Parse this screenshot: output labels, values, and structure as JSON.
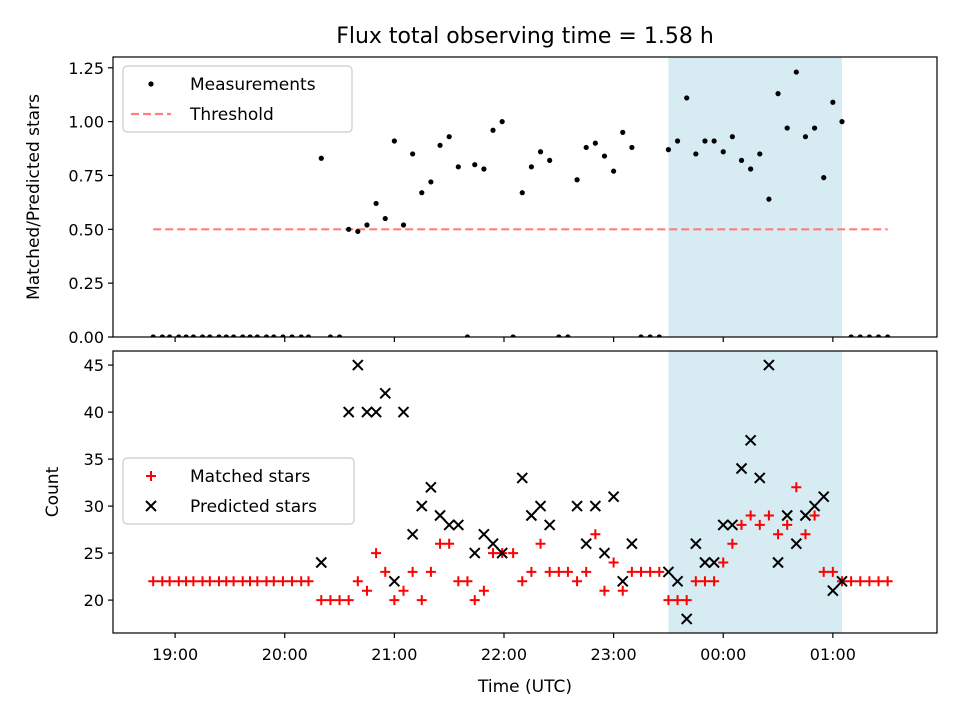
{
  "figure": {
    "title": "Flux total observing time = 1.58 h",
    "xlabel": "Time (UTC)"
  },
  "chart_data": [
    {
      "type": "scatter",
      "ylabel": "Matched/Predicted stars",
      "xlim": [
        "18:26",
        "01:57"
      ],
      "ylim": [
        0,
        1.3
      ],
      "yticks": [
        0.0,
        0.25,
        0.5,
        0.75,
        1.0,
        1.25
      ],
      "ytick_labels": [
        "0.00",
        "0.25",
        "0.50",
        "0.75",
        "1.00",
        "1.25"
      ],
      "legend": [
        "Measurements",
        "Threshold"
      ],
      "legend_loc": "upper left",
      "shaded_span": [
        "23:30",
        "01:05"
      ],
      "shaded_color": "#add8e6",
      "threshold": {
        "name": "Threshold",
        "y": 0.5,
        "x": [
          "18:48",
          "01:30"
        ],
        "color": "#ff7f7f",
        "style": "dashed"
      },
      "series": [
        {
          "name": "Measurements",
          "marker": "dot",
          "color": "#000000",
          "points": [
            [
              "18:48",
              0
            ],
            [
              "18:53",
              0
            ],
            [
              "18:57",
              0
            ],
            [
              "19:02",
              0
            ],
            [
              "19:06",
              0
            ],
            [
              "19:10",
              0
            ],
            [
              "19:15",
              0
            ],
            [
              "19:19",
              0
            ],
            [
              "19:24",
              0
            ],
            [
              "19:28",
              0
            ],
            [
              "19:32",
              0
            ],
            [
              "19:37",
              0
            ],
            [
              "19:41",
              0
            ],
            [
              "19:45",
              0
            ],
            [
              "19:50",
              0
            ],
            [
              "19:54",
              0
            ],
            [
              "19:59",
              0
            ],
            [
              "20:04",
              0
            ],
            [
              "20:09",
              0
            ],
            [
              "20:13",
              0
            ],
            [
              "20:20",
              0.83
            ],
            [
              "20:25",
              0
            ],
            [
              "20:30",
              0
            ],
            [
              "20:35",
              0.5
            ],
            [
              "20:40",
              0.49
            ],
            [
              "20:45",
              0.52
            ],
            [
              "20:50",
              0.62
            ],
            [
              "20:55",
              0.55
            ],
            [
              "21:00",
              0.91
            ],
            [
              "21:05",
              0.52
            ],
            [
              "21:10",
              0.85
            ],
            [
              "21:15",
              0.67
            ],
            [
              "21:20",
              0.72
            ],
            [
              "21:25",
              0.89
            ],
            [
              "21:30",
              0.93
            ],
            [
              "21:35",
              0.79
            ],
            [
              "21:40",
              0
            ],
            [
              "21:44",
              0.8
            ],
            [
              "21:49",
              0.78
            ],
            [
              "21:54",
              0.96
            ],
            [
              "21:59",
              1.0
            ],
            [
              "22:05",
              0
            ],
            [
              "22:10",
              0.67
            ],
            [
              "22:15",
              0.79
            ],
            [
              "22:20",
              0.86
            ],
            [
              "22:25",
              0.82
            ],
            [
              "22:30",
              0
            ],
            [
              "22:35",
              0
            ],
            [
              "22:40",
              0.73
            ],
            [
              "22:45",
              0.88
            ],
            [
              "22:50",
              0.9
            ],
            [
              "22:55",
              0.84
            ],
            [
              "23:00",
              0.77
            ],
            [
              "23:05",
              0.95
            ],
            [
              "23:10",
              0.88
            ],
            [
              "23:15",
              0
            ],
            [
              "23:20",
              0
            ],
            [
              "23:25",
              0
            ],
            [
              "23:30",
              0.87
            ],
            [
              "23:35",
              0.91
            ],
            [
              "23:40",
              1.11
            ],
            [
              "23:45",
              0.85
            ],
            [
              "23:50",
              0.91
            ],
            [
              "23:55",
              0.91
            ],
            [
              "00:00",
              0.86
            ],
            [
              "00:05",
              0.93
            ],
            [
              "00:10",
              0.82
            ],
            [
              "00:15",
              0.78
            ],
            [
              "00:20",
              0.85
            ],
            [
              "00:25",
              0.64
            ],
            [
              "00:30",
              1.13
            ],
            [
              "00:35",
              0.97
            ],
            [
              "00:40",
              1.23
            ],
            [
              "00:45",
              0.93
            ],
            [
              "00:50",
              0.97
            ],
            [
              "00:55",
              0.74
            ],
            [
              "01:00",
              1.09
            ],
            [
              "01:05",
              1.0
            ],
            [
              "01:10",
              0
            ],
            [
              "01:15",
              0
            ],
            [
              "01:20",
              0
            ],
            [
              "01:25",
              0
            ],
            [
              "01:30",
              0
            ]
          ]
        }
      ]
    },
    {
      "type": "scatter",
      "ylabel": "Count",
      "xlim": [
        "18:26",
        "01:57"
      ],
      "ylim": [
        16.5,
        46.5
      ],
      "yticks": [
        20,
        25,
        30,
        35,
        40,
        45
      ],
      "ytick_labels": [
        "20",
        "25",
        "30",
        "35",
        "40",
        "45"
      ],
      "xticks": [
        "19:00",
        "20:00",
        "21:00",
        "22:00",
        "23:00",
        "00:00",
        "01:00"
      ],
      "xtick_labels": [
        "19:00",
        "20:00",
        "21:00",
        "22:00",
        "23:00",
        "00:00",
        "01:00"
      ],
      "legend": [
        "Matched stars",
        "Predicted stars"
      ],
      "legend_loc": "center left",
      "shaded_span": [
        "23:30",
        "01:05"
      ],
      "shaded_color": "#add8e6",
      "series": [
        {
          "name": "Matched stars",
          "marker": "plus",
          "color": "#ff0000",
          "points": [
            [
              "18:48",
              22
            ],
            [
              "18:53",
              22
            ],
            [
              "18:57",
              22
            ],
            [
              "19:02",
              22
            ],
            [
              "19:06",
              22
            ],
            [
              "19:10",
              22
            ],
            [
              "19:15",
              22
            ],
            [
              "19:19",
              22
            ],
            [
              "19:24",
              22
            ],
            [
              "19:28",
              22
            ],
            [
              "19:32",
              22
            ],
            [
              "19:37",
              22
            ],
            [
              "19:41",
              22
            ],
            [
              "19:45",
              22
            ],
            [
              "19:50",
              22
            ],
            [
              "19:54",
              22
            ],
            [
              "19:59",
              22
            ],
            [
              "20:04",
              22
            ],
            [
              "20:09",
              22
            ],
            [
              "20:13",
              22
            ],
            [
              "20:20",
              20
            ],
            [
              "20:25",
              20
            ],
            [
              "20:30",
              20
            ],
            [
              "20:35",
              20
            ],
            [
              "20:40",
              22
            ],
            [
              "20:45",
              21
            ],
            [
              "20:50",
              25
            ],
            [
              "20:55",
              23
            ],
            [
              "21:00",
              20
            ],
            [
              "21:05",
              21
            ],
            [
              "21:10",
              23
            ],
            [
              "21:15",
              20
            ],
            [
              "21:20",
              23
            ],
            [
              "21:25",
              26
            ],
            [
              "21:30",
              26
            ],
            [
              "21:35",
              22
            ],
            [
              "21:40",
              22
            ],
            [
              "21:44",
              20
            ],
            [
              "21:49",
              21
            ],
            [
              "21:54",
              25
            ],
            [
              "21:59",
              25
            ],
            [
              "22:05",
              25
            ],
            [
              "22:10",
              22
            ],
            [
              "22:15",
              23
            ],
            [
              "22:20",
              26
            ],
            [
              "22:25",
              23
            ],
            [
              "22:30",
              23
            ],
            [
              "22:35",
              23
            ],
            [
              "22:40",
              22
            ],
            [
              "22:45",
              23
            ],
            [
              "22:50",
              27
            ],
            [
              "22:55",
              21
            ],
            [
              "23:00",
              24
            ],
            [
              "23:05",
              21
            ],
            [
              "23:10",
              23
            ],
            [
              "23:15",
              23
            ],
            [
              "23:20",
              23
            ],
            [
              "23:25",
              23
            ],
            [
              "23:30",
              20
            ],
            [
              "23:35",
              20
            ],
            [
              "23:40",
              20
            ],
            [
              "23:45",
              22
            ],
            [
              "23:50",
              22
            ],
            [
              "23:55",
              22
            ],
            [
              "00:00",
              24
            ],
            [
              "00:05",
              26
            ],
            [
              "00:10",
              28
            ],
            [
              "00:15",
              29
            ],
            [
              "00:20",
              28
            ],
            [
              "00:25",
              29
            ],
            [
              "00:30",
              27
            ],
            [
              "00:35",
              28
            ],
            [
              "00:40",
              32
            ],
            [
              "00:45",
              27
            ],
            [
              "00:50",
              29
            ],
            [
              "00:55",
              23
            ],
            [
              "01:00",
              23
            ],
            [
              "01:05",
              22
            ],
            [
              "01:10",
              22
            ],
            [
              "01:15",
              22
            ],
            [
              "01:20",
              22
            ],
            [
              "01:25",
              22
            ],
            [
              "01:30",
              22
            ]
          ]
        },
        {
          "name": "Predicted stars",
          "marker": "x",
          "color": "#000000",
          "points": [
            [
              "20:20",
              24
            ],
            [
              "20:35",
              40
            ],
            [
              "20:40",
              45
            ],
            [
              "20:45",
              40
            ],
            [
              "20:50",
              40
            ],
            [
              "20:55",
              42
            ],
            [
              "21:00",
              22
            ],
            [
              "21:05",
              40
            ],
            [
              "21:10",
              27
            ],
            [
              "21:15",
              30
            ],
            [
              "21:20",
              32
            ],
            [
              "21:25",
              29
            ],
            [
              "21:30",
              28
            ],
            [
              "21:35",
              28
            ],
            [
              "21:44",
              25
            ],
            [
              "21:49",
              27
            ],
            [
              "21:54",
              26
            ],
            [
              "21:59",
              25
            ],
            [
              "22:10",
              33
            ],
            [
              "22:15",
              29
            ],
            [
              "22:20",
              30
            ],
            [
              "22:25",
              28
            ],
            [
              "22:40",
              30
            ],
            [
              "22:45",
              26
            ],
            [
              "22:50",
              30
            ],
            [
              "22:55",
              25
            ],
            [
              "23:00",
              31
            ],
            [
              "23:05",
              22
            ],
            [
              "23:10",
              26
            ],
            [
              "23:30",
              23
            ],
            [
              "23:35",
              22
            ],
            [
              "23:40",
              18
            ],
            [
              "23:45",
              26
            ],
            [
              "23:50",
              24
            ],
            [
              "23:55",
              24
            ],
            [
              "00:00",
              28
            ],
            [
              "00:05",
              28
            ],
            [
              "00:10",
              34
            ],
            [
              "00:15",
              37
            ],
            [
              "00:20",
              33
            ],
            [
              "00:25",
              45
            ],
            [
              "00:30",
              24
            ],
            [
              "00:35",
              29
            ],
            [
              "00:40",
              26
            ],
            [
              "00:45",
              29
            ],
            [
              "00:50",
              30
            ],
            [
              "00:55",
              31
            ],
            [
              "01:00",
              21
            ],
            [
              "01:05",
              22
            ]
          ]
        }
      ]
    }
  ]
}
